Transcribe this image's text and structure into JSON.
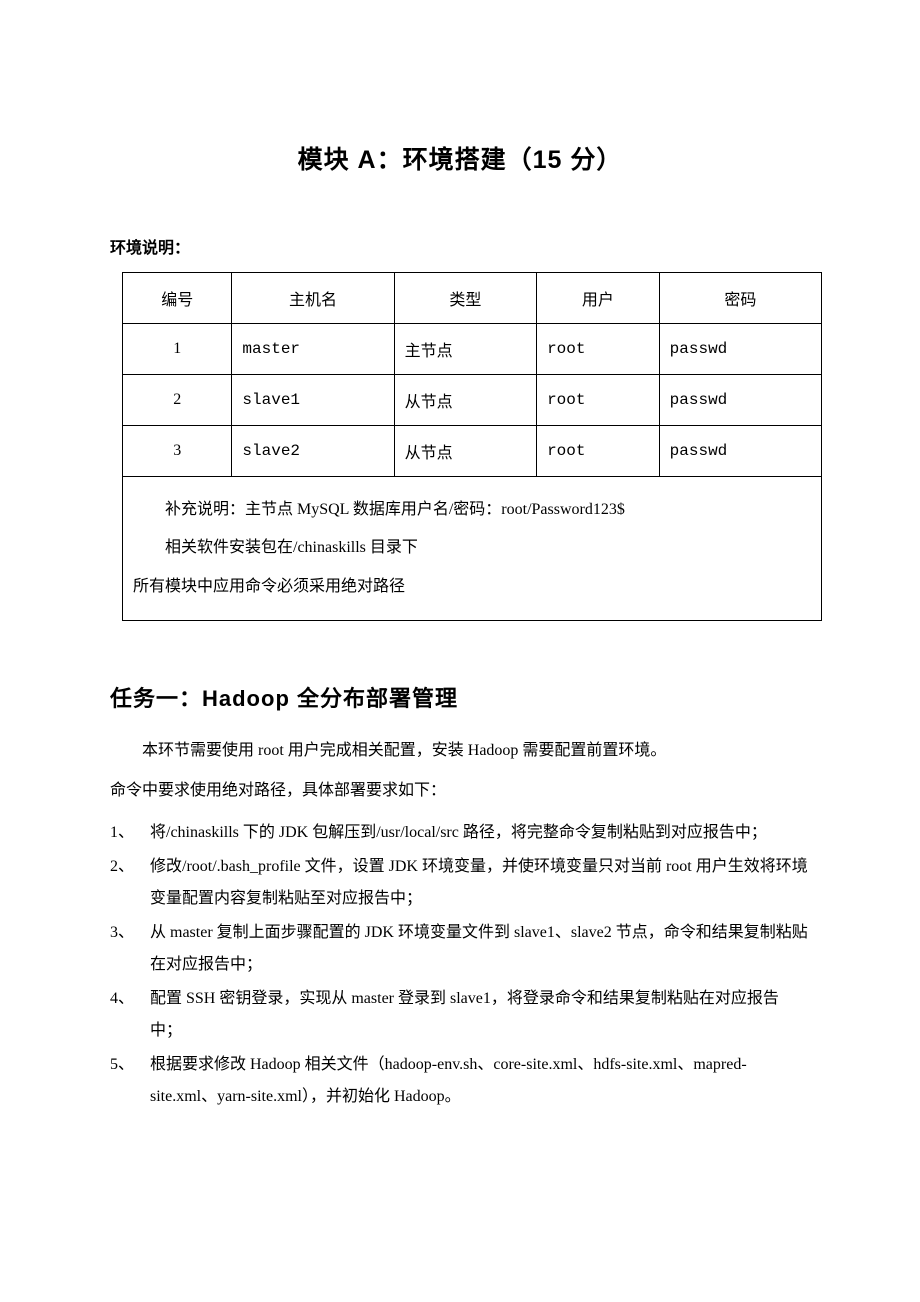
{
  "title": "模块 A：环境搭建（15 分）",
  "env_label": "环境说明：",
  "table": {
    "headers": {
      "col1": "编号",
      "col2": "主机名",
      "col3": "类型",
      "col4": "用户",
      "col5": "密码"
    },
    "rows": [
      {
        "num": "1",
        "host": "master",
        "type": "主节点",
        "user": "root",
        "pwd": "passwd"
      },
      {
        "num": "2",
        "host": "slave1",
        "type": "从节点",
        "user": "root",
        "pwd": "passwd"
      },
      {
        "num": "3",
        "host": "slave2",
        "type": "从节点",
        "user": "root",
        "pwd": "passwd"
      }
    ],
    "note_line1": "补充说明：主节点 MySQL 数据库用户名/密码：root/Password123$",
    "note_line2": "相关软件安装包在/chinaskills 目录下",
    "note_line3": "所有模块中应用命令必须采用绝对路径"
  },
  "task1": {
    "heading": "任务一：Hadoop 全分布部署管理",
    "intro": "本环节需要使用 root 用户完成相关配置，安装 Hadoop 需要配置前置环境。",
    "intro2": "命令中要求使用绝对路径，具体部署要求如下：",
    "items": [
      "将/chinaskills 下的 JDK 包解压到/usr/local/src 路径，将完整命令复制粘贴到对应报告中；",
      "修改/root/.bash_profile 文件，设置 JDK 环境变量，并使环境变量只对当前 root 用户生效将环境变量配置内容复制粘贴至对应报告中；",
      "从 master 复制上面步骤配置的 JDK 环境变量文件到 slave1、slave2 节点，命令和结果复制粘贴在对应报告中；",
      "配置 SSH 密钥登录，实现从 master 登录到 slave1，将登录命令和结果复制粘贴在对应报告中；",
      "根据要求修改 Hadoop 相关文件（hadoop-env.sh、core-site.xml、hdfs-site.xml、mapred-site.xml、yarn-site.xml），并初始化 Hadoop。"
    ],
    "markers": [
      "1、",
      "2、",
      "3、",
      "4、",
      "5、"
    ]
  }
}
